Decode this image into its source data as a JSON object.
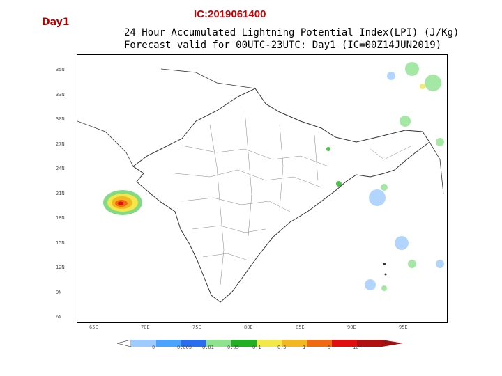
{
  "header": {
    "day_label": "Day1",
    "ic_label": "IC:2019061400",
    "title_line1": "24 Hour Accumulated Lightning Potential Index(LPI) (J/Kg)",
    "title_line2": "Forecast valid for 00UTC-23UTC: Day1 (IC=00Z14JUN2019)"
  },
  "map": {
    "lat_ticks": [
      "35N",
      "33N",
      "30N",
      "27N",
      "24N",
      "21N",
      "18N",
      "15N",
      "12N",
      "9N",
      "6N"
    ],
    "lon_ticks": [
      "65E",
      "70E",
      "75E",
      "80E",
      "85E",
      "90E",
      "95E"
    ]
  },
  "legend": {
    "labels": [
      "0",
      "0.005",
      "0.01",
      "0.05",
      "0.1",
      "0.5",
      "1",
      "5",
      "10"
    ],
    "colors": [
      "#9ecbff",
      "#4aa3ff",
      "#2a6ef0",
      "#8fe38f",
      "#22b022",
      "#f2e84a",
      "#f2b722",
      "#f06a12",
      "#e01010",
      "#b01010"
    ]
  }
}
